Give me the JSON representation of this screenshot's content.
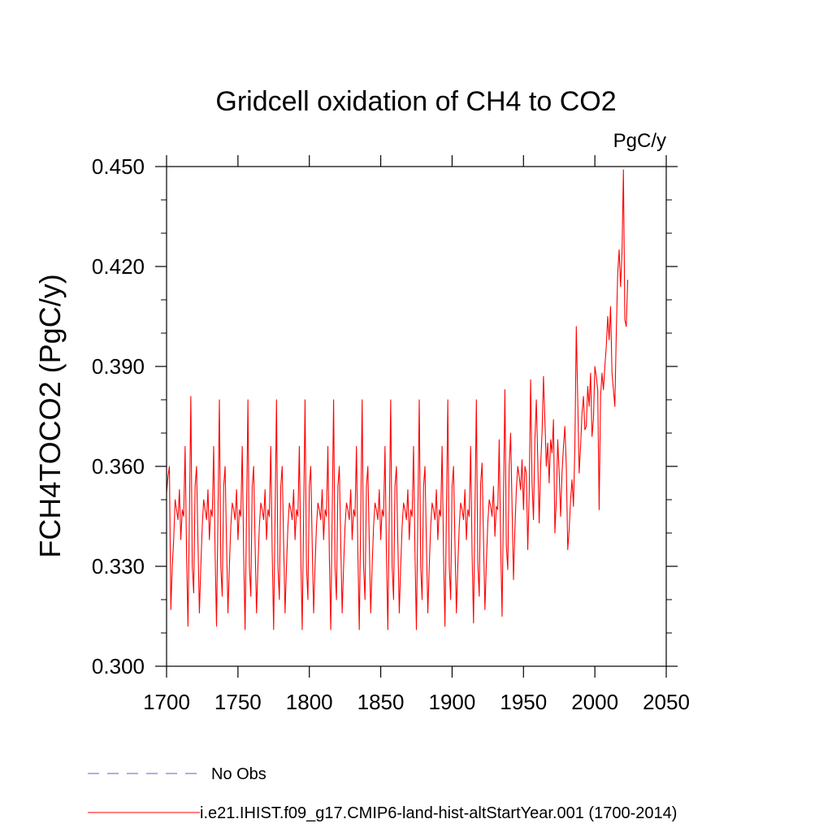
{
  "chart_data": {
    "type": "line",
    "title": "Gridcell oxidation of CH4 to CO2",
    "units": "PgC/y",
    "ylabel": "FCH4TOCO2  (PgC/y)",
    "xlabel": "",
    "xlim": [
      1700,
      2050
    ],
    "ylim": [
      0.3,
      0.45
    ],
    "xticks": [
      1700,
      1750,
      1800,
      1850,
      1900,
      1950,
      2000,
      2050
    ],
    "xtick_labels": [
      "1700",
      "1750",
      "1800",
      "1850",
      "1900",
      "1950",
      "2000",
      "2050"
    ],
    "yticks": [
      0.3,
      0.33,
      0.36,
      0.39,
      0.42,
      0.45
    ],
    "ytick_labels": [
      "0.300",
      "0.330",
      "0.360",
      "0.390",
      "0.420",
      "0.450"
    ],
    "grid": false,
    "legend_position": "bottom-left",
    "legend": [
      {
        "label": "No Obs",
        "color": "#6a5acd",
        "style": "dashed"
      },
      {
        "label": "i.e21.IHIST.f09_g17.CMIP6-land-hist-altStartYear.001 (1700-2014)",
        "color": "#ff0000",
        "style": "solid"
      }
    ],
    "series": [
      {
        "name": "i.e21.IHIST.f09_g17.CMIP6-land-hist-altStartYear.001 (1700-2014)",
        "color": "#ff0000",
        "x_start": 1700,
        "x_step": 1,
        "values": [
          0.352,
          0.357,
          0.36,
          0.317,
          0.33,
          0.338,
          0.35,
          0.347,
          0.344,
          0.353,
          0.338,
          0.347,
          0.345,
          0.366,
          0.334,
          0.312,
          0.345,
          0.381,
          0.33,
          0.322,
          0.354,
          0.36,
          0.337,
          0.316,
          0.33,
          0.342,
          0.35,
          0.347,
          0.344,
          0.353,
          0.338,
          0.347,
          0.345,
          0.366,
          0.334,
          0.312,
          0.345,
          0.38,
          0.33,
          0.321,
          0.354,
          0.36,
          0.337,
          0.316,
          0.33,
          0.342,
          0.349,
          0.347,
          0.344,
          0.353,
          0.338,
          0.347,
          0.345,
          0.366,
          0.334,
          0.311,
          0.345,
          0.38,
          0.33,
          0.321,
          0.354,
          0.36,
          0.337,
          0.316,
          0.33,
          0.342,
          0.349,
          0.347,
          0.344,
          0.353,
          0.338,
          0.347,
          0.345,
          0.366,
          0.334,
          0.311,
          0.345,
          0.38,
          0.33,
          0.32,
          0.354,
          0.36,
          0.337,
          0.316,
          0.33,
          0.342,
          0.349,
          0.347,
          0.344,
          0.353,
          0.338,
          0.347,
          0.345,
          0.366,
          0.334,
          0.311,
          0.345,
          0.38,
          0.33,
          0.32,
          0.354,
          0.36,
          0.337,
          0.316,
          0.33,
          0.342,
          0.349,
          0.347,
          0.344,
          0.353,
          0.338,
          0.347,
          0.345,
          0.366,
          0.334,
          0.311,
          0.345,
          0.38,
          0.33,
          0.32,
          0.354,
          0.36,
          0.337,
          0.316,
          0.33,
          0.342,
          0.349,
          0.347,
          0.344,
          0.353,
          0.338,
          0.347,
          0.345,
          0.366,
          0.334,
          0.311,
          0.345,
          0.38,
          0.33,
          0.32,
          0.354,
          0.36,
          0.337,
          0.316,
          0.33,
          0.342,
          0.349,
          0.347,
          0.344,
          0.353,
          0.338,
          0.347,
          0.345,
          0.366,
          0.334,
          0.311,
          0.345,
          0.38,
          0.33,
          0.32,
          0.354,
          0.36,
          0.337,
          0.316,
          0.33,
          0.342,
          0.349,
          0.347,
          0.344,
          0.353,
          0.338,
          0.347,
          0.345,
          0.366,
          0.334,
          0.311,
          0.345,
          0.38,
          0.33,
          0.32,
          0.354,
          0.36,
          0.337,
          0.316,
          0.33,
          0.342,
          0.349,
          0.347,
          0.344,
          0.353,
          0.338,
          0.347,
          0.345,
          0.366,
          0.334,
          0.312,
          0.345,
          0.38,
          0.33,
          0.32,
          0.354,
          0.36,
          0.337,
          0.316,
          0.33,
          0.342,
          0.349,
          0.347,
          0.344,
          0.353,
          0.338,
          0.347,
          0.345,
          0.366,
          0.334,
          0.313,
          0.346,
          0.38,
          0.331,
          0.321,
          0.355,
          0.361,
          0.338,
          0.317,
          0.331,
          0.343,
          0.35,
          0.348,
          0.345,
          0.354,
          0.339,
          0.348,
          0.347,
          0.368,
          0.337,
          0.315,
          0.35,
          0.383,
          0.336,
          0.329,
          0.36,
          0.37,
          0.348,
          0.326,
          0.341,
          0.353,
          0.36,
          0.357,
          0.353,
          0.362,
          0.347,
          0.36,
          0.358,
          0.335,
          0.352,
          0.386,
          0.355,
          0.344,
          0.368,
          0.38,
          0.362,
          0.343,
          0.36,
          0.37,
          0.387,
          0.374,
          0.36,
          0.367,
          0.355,
          0.368,
          0.364,
          0.374,
          0.34,
          0.35,
          0.368,
          0.358,
          0.345,
          0.358,
          0.366,
          0.372,
          0.36,
          0.335,
          0.341,
          0.35,
          0.356,
          0.348,
          0.366,
          0.402,
          0.38,
          0.358,
          0.366,
          0.376,
          0.381,
          0.371,
          0.372,
          0.384,
          0.378,
          0.388,
          0.369,
          0.374,
          0.39,
          0.387,
          0.383,
          0.347,
          0.381,
          0.388,
          0.383,
          0.39,
          0.396,
          0.405,
          0.398,
          0.408,
          0.388,
          0.383,
          0.378,
          0.4,
          0.418,
          0.425,
          0.414,
          0.424,
          0.449,
          0.404,
          0.402,
          0.416
        ]
      },
      {
        "name": "No Obs",
        "color": "#6a5acd",
        "values": []
      }
    ]
  }
}
